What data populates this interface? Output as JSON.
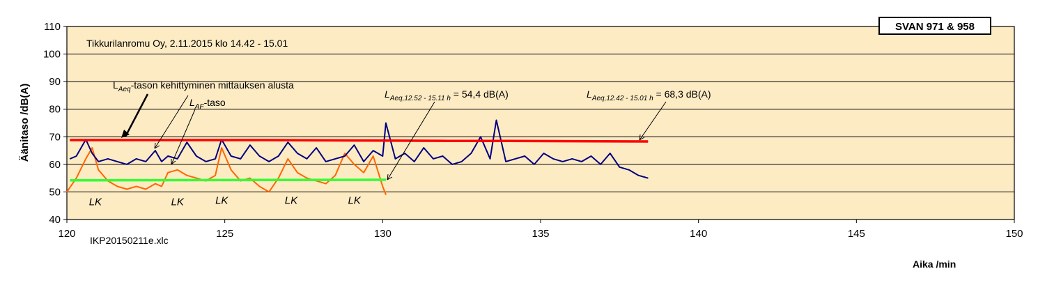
{
  "chart_data": {
    "type": "line",
    "title": "SVAN 971 & 958",
    "subtitle": "Tikkurilanromu  Oy, 2.11.2015 klo 14.42  - 15.01",
    "file_label": "IKP20150211e.xlc",
    "xlabel": "Aika  /min",
    "ylabel": "Äänitaso /dB(A)",
    "xlim": [
      120,
      150
    ],
    "ylim": [
      40,
      110
    ],
    "x_ticks": [
      120,
      125,
      130,
      135,
      140,
      145,
      150
    ],
    "y_ticks": [
      40,
      50,
      60,
      70,
      80,
      90,
      100,
      110
    ],
    "grid": "horizontal",
    "background": "#fdebc4",
    "series": [
      {
        "label_main": "L",
        "label_sub": "Aeq",
        "label_rest": "-tason kehittyminen mittauksen alusta",
        "color": "#ff0000",
        "x": [
          120.1,
          122,
          124,
          126,
          128,
          130,
          132,
          134,
          136,
          138.4
        ],
        "values": [
          68.8,
          68.8,
          68.8,
          68.8,
          68.7,
          68.6,
          68.5,
          68.5,
          68.4,
          68.3
        ]
      },
      {
        "label_main": "L",
        "label_sub": "AF",
        "label_rest": "-taso",
        "color": "#000080",
        "x": [
          120.1,
          120.3,
          120.6,
          120.8,
          121.0,
          121.3,
          121.6,
          121.9,
          122.2,
          122.5,
          122.8,
          123.0,
          123.2,
          123.5,
          123.8,
          124.1,
          124.4,
          124.7,
          124.9,
          125.2,
          125.5,
          125.8,
          126.1,
          126.4,
          126.7,
          127.0,
          127.3,
          127.6,
          127.9,
          128.2,
          128.5,
          128.8,
          129.1,
          129.4,
          129.7,
          130.0,
          130.1,
          130.4,
          130.7,
          131.0,
          131.3,
          131.6,
          131.9,
          132.2,
          132.5,
          132.8,
          133.1,
          133.4,
          133.6,
          133.9,
          134.2,
          134.5,
          134.8,
          135.1,
          135.4,
          135.7,
          136.0,
          136.3,
          136.6,
          136.9,
          137.2,
          137.5,
          137.8,
          138.1,
          138.4
        ],
        "values": [
          62,
          63,
          69,
          64,
          61,
          62,
          61,
          60,
          62,
          61,
          65,
          61,
          63,
          62,
          68,
          63,
          61,
          62,
          69,
          63,
          62,
          67,
          63,
          61,
          63,
          68,
          64,
          62,
          66,
          61,
          62,
          63,
          67,
          61,
          65,
          63,
          75,
          62,
          64,
          61,
          66,
          62,
          63,
          60,
          61,
          64,
          70,
          62,
          76,
          61,
          62,
          63,
          60,
          64,
          62,
          61,
          62,
          61,
          63,
          60,
          64,
          59,
          58,
          56,
          55
        ]
      },
      {
        "color": "#ff6600",
        "x": [
          120.0,
          120.3,
          120.6,
          120.8,
          121.0,
          121.3,
          121.6,
          121.9,
          122.2,
          122.5,
          122.8,
          123.0,
          123.2,
          123.5,
          123.8,
          124.1,
          124.4,
          124.7,
          124.9,
          125.2,
          125.5,
          125.8,
          126.1,
          126.4,
          126.7,
          127.0,
          127.3,
          127.6,
          127.9,
          128.2,
          128.5,
          128.8,
          129.1,
          129.4,
          129.7,
          130.0,
          130.1
        ],
        "values": [
          50,
          55,
          62,
          66,
          58,
          54,
          52,
          51,
          52,
          51,
          53,
          52,
          57,
          58,
          56,
          55,
          54,
          56,
          66,
          58,
          54,
          55,
          52,
          50,
          55,
          62,
          57,
          55,
          54,
          53,
          56,
          64,
          60,
          57,
          63,
          52,
          49
        ]
      },
      {
        "color": "#33ff33",
        "x": [
          120.1,
          130.1
        ],
        "values": [
          54.2,
          54.4
        ]
      }
    ],
    "annotations": [
      {
        "main": "L",
        "sub": "Aeq,12.52  - 15.11 h",
        "rest": " = 54,4 dB(A)"
      },
      {
        "main": "L",
        "sub": "Aeq,12.42  - 15.01 h",
        "rest": " = 68,3 dB(A)"
      }
    ],
    "lk_labels": [
      {
        "text": "LK",
        "x": 120.7,
        "y": 46.5
      },
      {
        "text": "LK",
        "x": 123.3,
        "y": 46.5
      },
      {
        "text": "LK",
        "x": 124.7,
        "y": 47.0
      },
      {
        "text": "LK",
        "x": 126.9,
        "y": 47.0
      },
      {
        "text": "LK",
        "x": 128.9,
        "y": 47.0
      }
    ]
  }
}
